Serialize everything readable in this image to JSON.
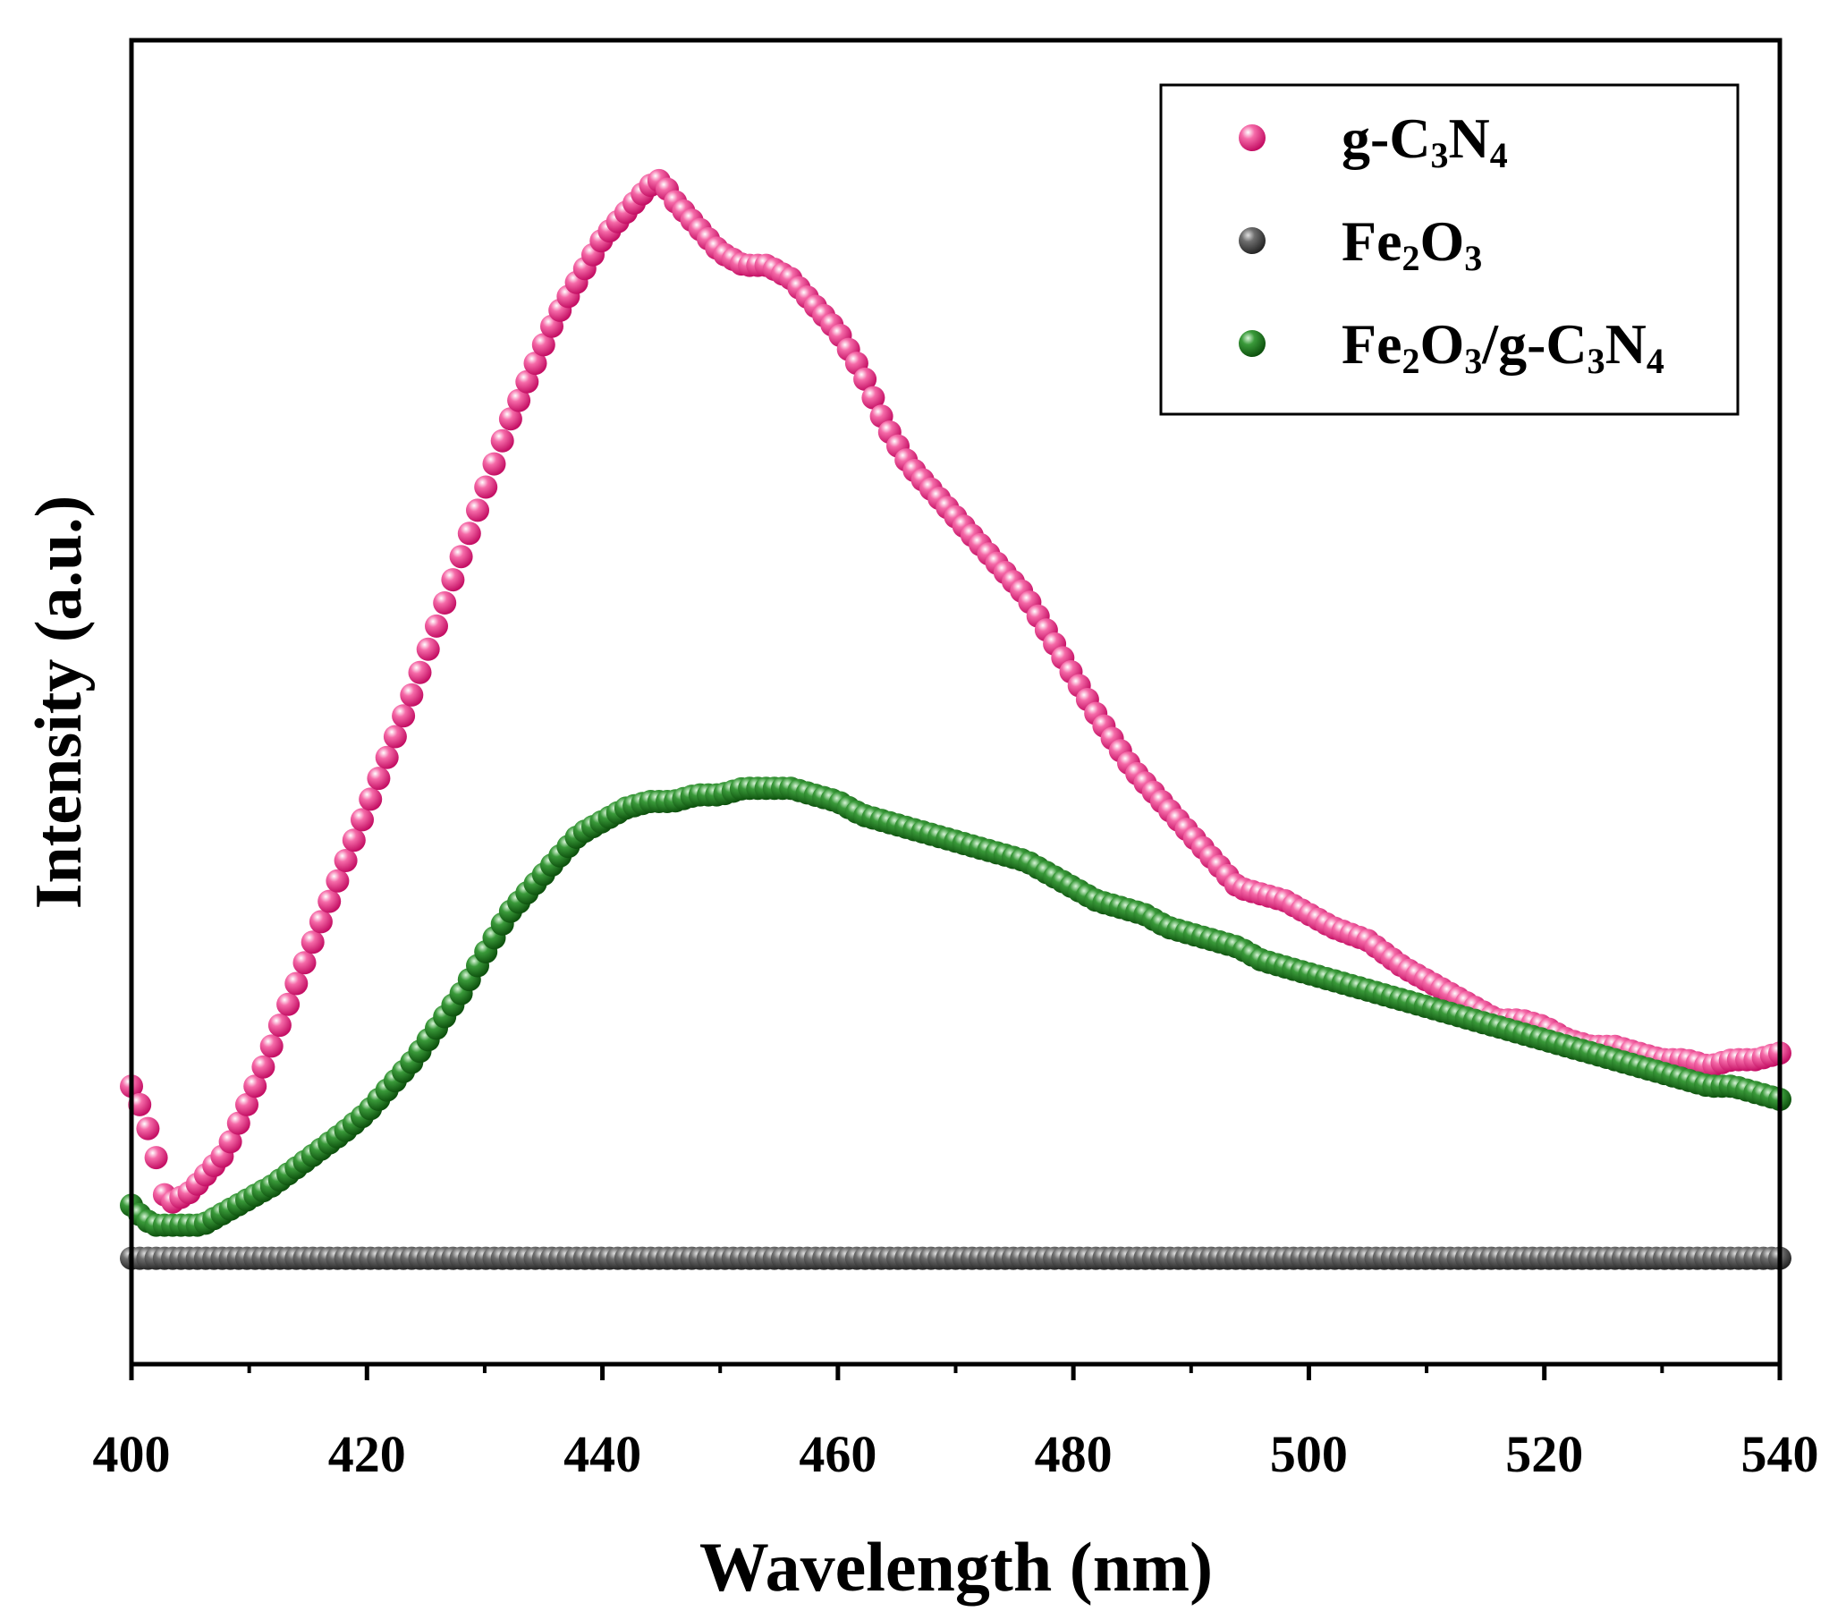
{
  "chart_data": {
    "type": "scatter",
    "xlabel": "Wavelength (nm)",
    "ylabel": "Intensity (a.u.)",
    "xlim": [
      400,
      540
    ],
    "ylim": [
      0,
      100
    ],
    "xticks": [
      "400",
      "420",
      "440",
      "460",
      "480",
      "500",
      "520",
      "540"
    ],
    "yticks_shown": false,
    "legend_position": "top-right",
    "series": [
      {
        "name": "g-C3N4",
        "label_parts": [
          [
            "g-C",
            false
          ],
          [
            "3",
            true
          ],
          [
            "N",
            false
          ],
          [
            "4",
            true
          ]
        ],
        "color": "#e8147a",
        "anchors": [
          [
            400,
            21
          ],
          [
            401,
            19
          ],
          [
            402,
            16
          ],
          [
            403,
            12
          ],
          [
            404,
            12.5
          ],
          [
            405,
            13
          ],
          [
            408,
            16
          ],
          [
            411,
            22
          ],
          [
            415,
            31
          ],
          [
            420,
            42
          ],
          [
            424,
            51
          ],
          [
            428,
            61
          ],
          [
            430,
            66
          ],
          [
            432,
            71
          ],
          [
            434,
            75
          ],
          [
            436,
            79
          ],
          [
            438,
            82
          ],
          [
            440,
            85
          ],
          [
            442,
            87
          ],
          [
            444,
            89
          ],
          [
            445,
            89.5
          ],
          [
            446,
            88
          ],
          [
            448,
            86
          ],
          [
            450,
            84
          ],
          [
            452,
            83
          ],
          [
            454,
            83
          ],
          [
            456,
            82
          ],
          [
            458,
            80
          ],
          [
            460,
            78
          ],
          [
            462,
            75
          ],
          [
            464,
            71
          ],
          [
            466,
            68
          ],
          [
            468,
            66
          ],
          [
            470,
            64
          ],
          [
            472,
            62
          ],
          [
            474,
            60
          ],
          [
            476,
            58
          ],
          [
            478,
            55
          ],
          [
            480,
            52
          ],
          [
            482,
            49
          ],
          [
            485,
            45
          ],
          [
            488,
            42
          ],
          [
            490,
            40
          ],
          [
            492,
            38
          ],
          [
            494,
            36
          ],
          [
            496,
            35.5
          ],
          [
            498,
            35
          ],
          [
            500,
            34
          ],
          [
            502,
            33
          ],
          [
            505,
            32
          ],
          [
            508,
            30
          ],
          [
            510,
            29
          ],
          [
            512,
            28
          ],
          [
            514,
            27
          ],
          [
            516,
            26
          ],
          [
            518,
            26
          ],
          [
            520,
            25.5
          ],
          [
            522,
            24.5
          ],
          [
            524,
            24
          ],
          [
            526,
            24
          ],
          [
            528,
            23.5
          ],
          [
            530,
            23
          ],
          [
            532,
            23
          ],
          [
            534,
            22.5
          ],
          [
            536,
            23
          ],
          [
            538,
            23
          ],
          [
            540,
            23.5
          ]
        ]
      },
      {
        "name": "Fe2O3",
        "label_parts": [
          [
            "Fe",
            false
          ],
          [
            "2",
            true
          ],
          [
            "O",
            false
          ],
          [
            "3",
            true
          ]
        ],
        "color": "#4a4a4a",
        "anchors": [
          [
            400,
            8
          ],
          [
            540,
            8
          ]
        ]
      },
      {
        "name": "Fe2O3/g-C3N4",
        "label_parts": [
          [
            "Fe",
            false
          ],
          [
            "2",
            true
          ],
          [
            "O",
            false
          ],
          [
            "3",
            true
          ],
          [
            "/g-C",
            false
          ],
          [
            "3",
            true
          ],
          [
            "N",
            false
          ],
          [
            "4",
            true
          ]
        ],
        "color": "#1f7a1f",
        "anchors": [
          [
            400,
            12
          ],
          [
            401,
            11
          ],
          [
            402,
            10.5
          ],
          [
            404,
            10.5
          ],
          [
            406,
            10.5
          ],
          [
            408,
            11.5
          ],
          [
            410,
            12.5
          ],
          [
            412,
            13.5
          ],
          [
            415,
            15.5
          ],
          [
            418,
            17.5
          ],
          [
            420,
            19
          ],
          [
            422,
            21
          ],
          [
            424,
            23
          ],
          [
            426,
            25.5
          ],
          [
            428,
            28
          ],
          [
            430,
            31
          ],
          [
            432,
            34
          ],
          [
            434,
            36
          ],
          [
            436,
            38
          ],
          [
            438,
            40
          ],
          [
            440,
            41
          ],
          [
            442,
            42
          ],
          [
            444,
            42.5
          ],
          [
            446,
            42.5
          ],
          [
            448,
            43
          ],
          [
            450,
            43
          ],
          [
            452,
            43.5
          ],
          [
            454,
            43.5
          ],
          [
            456,
            43.5
          ],
          [
            458,
            43
          ],
          [
            460,
            42.5
          ],
          [
            462,
            41.5
          ],
          [
            464,
            41
          ],
          [
            466,
            40.5
          ],
          [
            468,
            40
          ],
          [
            470,
            39.5
          ],
          [
            472,
            39
          ],
          [
            474,
            38.5
          ],
          [
            476,
            38
          ],
          [
            478,
            37
          ],
          [
            480,
            36
          ],
          [
            482,
            35
          ],
          [
            484,
            34.5
          ],
          [
            486,
            34
          ],
          [
            488,
            33
          ],
          [
            490,
            32.5
          ],
          [
            492,
            32
          ],
          [
            494,
            31.5
          ],
          [
            496,
            30.5
          ],
          [
            498,
            30
          ],
          [
            500,
            29.5
          ],
          [
            502,
            29
          ],
          [
            504,
            28.5
          ],
          [
            506,
            28
          ],
          [
            508,
            27.5
          ],
          [
            510,
            27
          ],
          [
            512,
            26.5
          ],
          [
            514,
            26
          ],
          [
            516,
            25.5
          ],
          [
            518,
            25
          ],
          [
            520,
            24.5
          ],
          [
            522,
            24
          ],
          [
            524,
            23.5
          ],
          [
            526,
            23
          ],
          [
            528,
            22.5
          ],
          [
            530,
            22
          ],
          [
            532,
            21.5
          ],
          [
            534,
            21
          ],
          [
            536,
            21
          ],
          [
            538,
            20.5
          ],
          [
            540,
            20
          ]
        ]
      }
    ]
  }
}
